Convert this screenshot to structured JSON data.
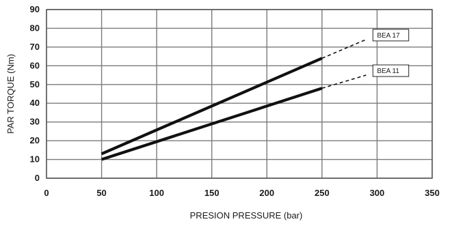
{
  "chart_data": {
    "type": "line",
    "xlabel": "PRESION PRESSURE (bar)",
    "ylabel": "PAR TORQUE (Nm)",
    "xlim": [
      0,
      350
    ],
    "ylim": [
      0,
      90
    ],
    "x_ticks": [
      0,
      50,
      100,
      150,
      200,
      250,
      300,
      350
    ],
    "y_ticks": [
      0,
      10,
      20,
      30,
      40,
      50,
      60,
      70,
      80,
      90
    ],
    "grid": true,
    "series": [
      {
        "name": "BEA 17",
        "solid": [
          {
            "x": 50,
            "y": 13
          },
          {
            "x": 250,
            "y": 64
          }
        ],
        "dashed": [
          {
            "x": 250,
            "y": 64
          },
          {
            "x": 290,
            "y": 74
          }
        ]
      },
      {
        "name": "BEA 11",
        "solid": [
          {
            "x": 50,
            "y": 10
          },
          {
            "x": 250,
            "y": 48
          }
        ],
        "dashed": [
          {
            "x": 250,
            "y": 48
          },
          {
            "x": 290,
            "y": 55
          }
        ]
      }
    ]
  }
}
